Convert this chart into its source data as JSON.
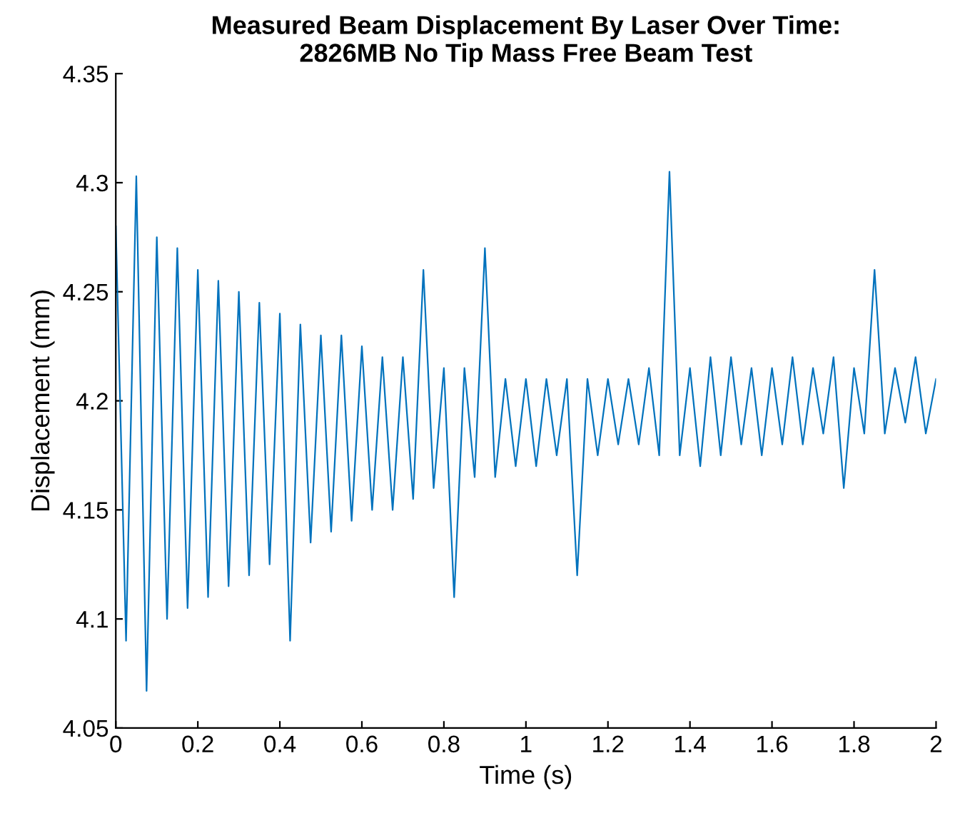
{
  "chart_data": {
    "type": "line",
    "title": "Measured Beam Displacement By Laser Over Time:\n2826MB No Tip Mass Free Beam Test",
    "xlabel": "Time (s)",
    "ylabel": "Displacement (mm)",
    "x": [
      0,
      0.025,
      0.05,
      0.075,
      0.1,
      0.125,
      0.15,
      0.175,
      0.2,
      0.225,
      0.25,
      0.275,
      0.3,
      0.325,
      0.35,
      0.375,
      0.4,
      0.425,
      0.45,
      0.475,
      0.5,
      0.525,
      0.55,
      0.575,
      0.6,
      0.625,
      0.65,
      0.675,
      0.7,
      0.725,
      0.75,
      0.775,
      0.8,
      0.825,
      0.85,
      0.875,
      0.9,
      0.925,
      0.95,
      0.975,
      1.0,
      1.025,
      1.05,
      1.075,
      1.1,
      1.125,
      1.15,
      1.175,
      1.2,
      1.225,
      1.25,
      1.275,
      1.3,
      1.325,
      1.35,
      1.375,
      1.4,
      1.425,
      1.45,
      1.475,
      1.5,
      1.525,
      1.55,
      1.575,
      1.6,
      1.625,
      1.65,
      1.675,
      1.7,
      1.725,
      1.75,
      1.775,
      1.8,
      1.825,
      1.85,
      1.875,
      1.9,
      1.925,
      1.95,
      1.975,
      2.0
    ],
    "series": [
      {
        "color": "#0072bd",
        "values": [
          4.28,
          4.09,
          4.303,
          4.067,
          4.275,
          4.1,
          4.27,
          4.105,
          4.26,
          4.11,
          4.255,
          4.115,
          4.25,
          4.12,
          4.245,
          4.125,
          4.24,
          4.09,
          4.235,
          4.135,
          4.23,
          4.14,
          4.23,
          4.145,
          4.225,
          4.15,
          4.22,
          4.15,
          4.22,
          4.155,
          4.26,
          4.16,
          4.215,
          4.11,
          4.215,
          4.165,
          4.27,
          4.165,
          4.21,
          4.17,
          4.21,
          4.17,
          4.21,
          4.175,
          4.21,
          4.12,
          4.21,
          4.175,
          4.21,
          4.18,
          4.21,
          4.18,
          4.215,
          4.175,
          4.305,
          4.175,
          4.215,
          4.17,
          4.22,
          4.175,
          4.22,
          4.18,
          4.215,
          4.175,
          4.215,
          4.18,
          4.22,
          4.18,
          4.215,
          4.185,
          4.22,
          4.16,
          4.215,
          4.185,
          4.26,
          4.185,
          4.215,
          4.19,
          4.22,
          4.185,
          4.21
        ]
      }
    ],
    "xlim": [
      0,
      2
    ],
    "xticks": [
      0,
      0.2,
      0.4,
      0.6,
      0.8,
      1,
      1.2,
      1.4,
      1.6,
      1.8,
      2
    ],
    "ylim": [
      4.05,
      4.35
    ],
    "yticks": [
      4.05,
      4.1,
      4.15,
      4.2,
      4.25,
      4.3,
      4.35
    ]
  }
}
